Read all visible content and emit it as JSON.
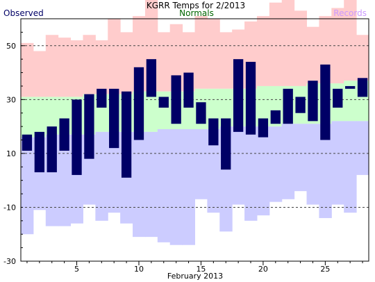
{
  "chart_data": {
    "type": "bar",
    "title": "KGRR Temps for 2/2013",
    "legend": {
      "observed": "Observed",
      "normals": "Normals",
      "records": "Records"
    },
    "xlabel": "February 2013",
    "ylabel": "",
    "ylim": [
      -30,
      60
    ],
    "xlim": [
      0.5,
      28.5
    ],
    "grid": "dashed at 50, 30, 10, -10",
    "days": [
      1,
      2,
      3,
      4,
      5,
      6,
      7,
      8,
      9,
      10,
      11,
      12,
      13,
      14,
      15,
      16,
      17,
      18,
      19,
      20,
      21,
      22,
      23,
      24,
      25,
      26,
      27,
      28
    ],
    "record_high": [
      51,
      48,
      54,
      53,
      52,
      54,
      52,
      60,
      55,
      61,
      69,
      55,
      58,
      55,
      61,
      60,
      55,
      56,
      59,
      61,
      66,
      67,
      63,
      57,
      61,
      64,
      67,
      54
    ],
    "record_low": [
      -20,
      -11,
      -17,
      -17,
      -16,
      -9,
      -15,
      -12,
      -16,
      -21,
      -21,
      -23,
      -24,
      -24,
      -7,
      -12,
      -19,
      -9,
      -15,
      -13,
      -8,
      -7,
      -4,
      -9,
      -14,
      -9,
      -12,
      2
    ],
    "normal_high": [
      31,
      31,
      31,
      31,
      31,
      32,
      32,
      32,
      32,
      33,
      33,
      33,
      33,
      33,
      34,
      34,
      34,
      34,
      34,
      35,
      35,
      35,
      35,
      36,
      36,
      36,
      37,
      37
    ],
    "normal_low": [
      16,
      16,
      17,
      17,
      17,
      17,
      18,
      18,
      18,
      18,
      18,
      19,
      19,
      19,
      19,
      19,
      20,
      20,
      20,
      20,
      20,
      21,
      21,
      21,
      21,
      22,
      22,
      22
    ],
    "observed_high": [
      17,
      18,
      20,
      23,
      30,
      32,
      34,
      34,
      33,
      42,
      45,
      31,
      39,
      40,
      29,
      23,
      23,
      45,
      44,
      23,
      26,
      34,
      31,
      37,
      43,
      34,
      35,
      38
    ],
    "observed_low": [
      11,
      3,
      3,
      11,
      2,
      8,
      27,
      12,
      1,
      15,
      31,
      27,
      21,
      27,
      21,
      13,
      4,
      18,
      17,
      16,
      21,
      21,
      25,
      22,
      15,
      27,
      34,
      31
    ],
    "x_ticks": [
      5,
      10,
      15,
      20,
      25
    ],
    "y_ticks": [
      50,
      30,
      10,
      -10,
      -30
    ],
    "colors": {
      "records": "#FFCCCC",
      "normals": "#CCFFCC",
      "lows": "#CCCCFF",
      "observed": "#000066",
      "observed_label": "#000066",
      "normals_label": "#006600",
      "records_label": "#CC99FF",
      "grid": "#444444"
    }
  }
}
